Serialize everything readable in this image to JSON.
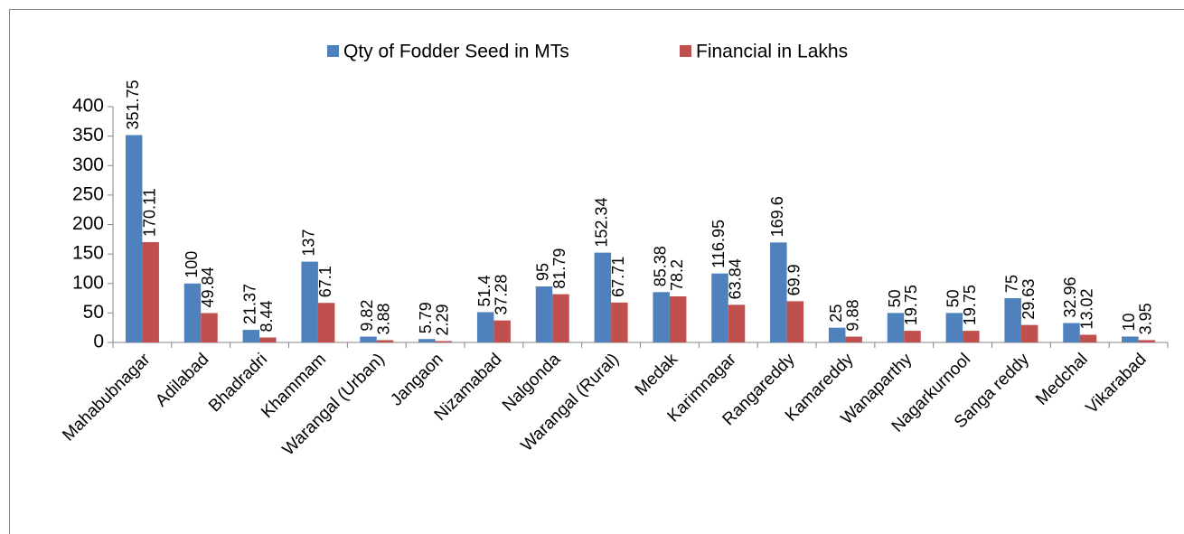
{
  "chart_data": {
    "type": "bar",
    "categories": [
      "Mahabubnagar",
      "Adilabad",
      "Bhadradri",
      "Khammam",
      "Warangal (Urban)",
      "Jangaon",
      "Nizamabad",
      "Nalgonda",
      "Warangal (Rural)",
      "Medak",
      "Karimnagar",
      "Rangareddy",
      "Kamareddy",
      "Wanaparthy",
      "Nagarkurnool",
      "Sanga reddy",
      "Medchal",
      "Vikarabad"
    ],
    "series": [
      {
        "name": "Qty of Fodder Seed in MTs",
        "color": "#4f81bd",
        "values": [
          351.75,
          100,
          21.37,
          137,
          9.82,
          5.79,
          51.4,
          95,
          152.34,
          85.38,
          116.95,
          169.6,
          25,
          50,
          50,
          75,
          32.96,
          10
        ]
      },
      {
        "name": "Financial in Lakhs",
        "color": "#c0504d",
        "values": [
          170.11,
          49.84,
          8.44,
          67.1,
          3.88,
          2.29,
          37.28,
          81.79,
          67.71,
          78.2,
          63.84,
          69.9,
          9.88,
          19.75,
          19.75,
          29.63,
          13.02,
          3.95
        ]
      }
    ],
    "ylim": [
      0,
      400
    ],
    "yticks": [
      0,
      50,
      100,
      150,
      200,
      250,
      300,
      350,
      400
    ],
    "legend": "top",
    "data_labels": true
  }
}
